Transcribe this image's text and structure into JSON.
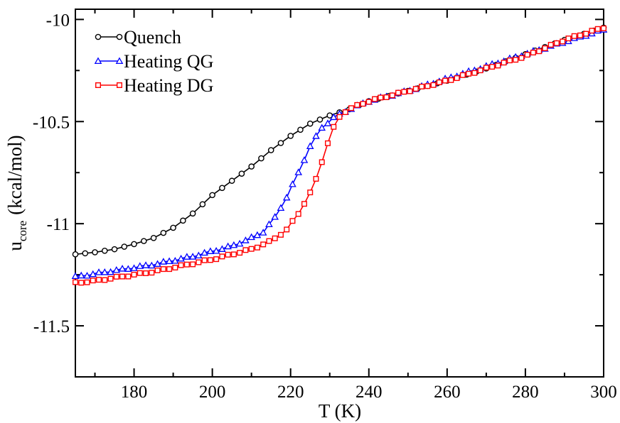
{
  "chart_data": {
    "type": "line",
    "title": "",
    "xlabel": "T  (K)",
    "ylabel_main": "u",
    "ylabel_sub": "core",
    "ylabel_unit": "(kcal/mol)",
    "xlim": [
      165,
      300
    ],
    "ylim": [
      -11.75,
      -9.95
    ],
    "x_ticks": [
      180,
      200,
      220,
      240,
      260,
      280,
      300
    ],
    "x_tick_labels": [
      "180",
      "200",
      "220",
      "240",
      "260",
      "280",
      "300"
    ],
    "y_ticks": [
      -11.5,
      -11,
      -10.5,
      -10
    ],
    "y_tick_labels": [
      "-11.5",
      "-11",
      "-10.5",
      "-10"
    ],
    "legend_position": "top-left",
    "series": [
      {
        "name": "Quench",
        "color": "#000000",
        "marker": "circle",
        "anchors": [
          [
            165,
            -11.15
          ],
          [
            170,
            -11.14
          ],
          [
            175,
            -11.125
          ],
          [
            180,
            -11.1
          ],
          [
            185,
            -11.07
          ],
          [
            190,
            -11.02
          ],
          [
            195,
            -10.95
          ],
          [
            200,
            -10.86
          ],
          [
            205,
            -10.79
          ],
          [
            210,
            -10.72
          ],
          [
            215,
            -10.64
          ],
          [
            220,
            -10.57
          ],
          [
            225,
            -10.51
          ],
          [
            230,
            -10.47
          ],
          [
            235,
            -10.44
          ],
          [
            240,
            -10.4
          ],
          [
            250,
            -10.35
          ],
          [
            260,
            -10.3
          ],
          [
            270,
            -10.24
          ],
          [
            280,
            -10.17
          ],
          [
            290,
            -10.1
          ],
          [
            300,
            -10.04
          ]
        ]
      },
      {
        "name": "Heating QG",
        "color": "#0000ff",
        "marker": "triangle",
        "anchors": [
          [
            165,
            -11.26
          ],
          [
            170,
            -11.245
          ],
          [
            175,
            -11.23
          ],
          [
            180,
            -11.215
          ],
          [
            185,
            -11.2
          ],
          [
            190,
            -11.18
          ],
          [
            195,
            -11.16
          ],
          [
            200,
            -11.135
          ],
          [
            205,
            -11.11
          ],
          [
            210,
            -11.07
          ],
          [
            213,
            -11.04
          ],
          [
            216,
            -10.97
          ],
          [
            219,
            -10.87
          ],
          [
            222,
            -10.75
          ],
          [
            225,
            -10.62
          ],
          [
            228,
            -10.53
          ],
          [
            231,
            -10.48
          ],
          [
            235,
            -10.44
          ],
          [
            240,
            -10.4
          ],
          [
            250,
            -10.35
          ],
          [
            260,
            -10.29
          ],
          [
            270,
            -10.23
          ],
          [
            280,
            -10.17
          ],
          [
            290,
            -10.11
          ],
          [
            300,
            -10.05
          ]
        ]
      },
      {
        "name": "Heating DG",
        "color": "#ff0000",
        "marker": "square",
        "anchors": [
          [
            165,
            -11.29
          ],
          [
            170,
            -11.28
          ],
          [
            175,
            -11.265
          ],
          [
            180,
            -11.25
          ],
          [
            185,
            -11.235
          ],
          [
            190,
            -11.215
          ],
          [
            195,
            -11.195
          ],
          [
            200,
            -11.175
          ],
          [
            205,
            -11.15
          ],
          [
            210,
            -11.125
          ],
          [
            215,
            -11.085
          ],
          [
            219,
            -11.03
          ],
          [
            222,
            -10.95
          ],
          [
            225,
            -10.85
          ],
          [
            227,
            -10.76
          ],
          [
            229,
            -10.63
          ],
          [
            231,
            -10.53
          ],
          [
            233,
            -10.46
          ],
          [
            236,
            -10.43
          ],
          [
            240,
            -10.4
          ],
          [
            250,
            -10.35
          ],
          [
            260,
            -10.3
          ],
          [
            270,
            -10.24
          ],
          [
            280,
            -10.18
          ],
          [
            290,
            -10.1
          ],
          [
            300,
            -10.04
          ]
        ]
      }
    ]
  }
}
